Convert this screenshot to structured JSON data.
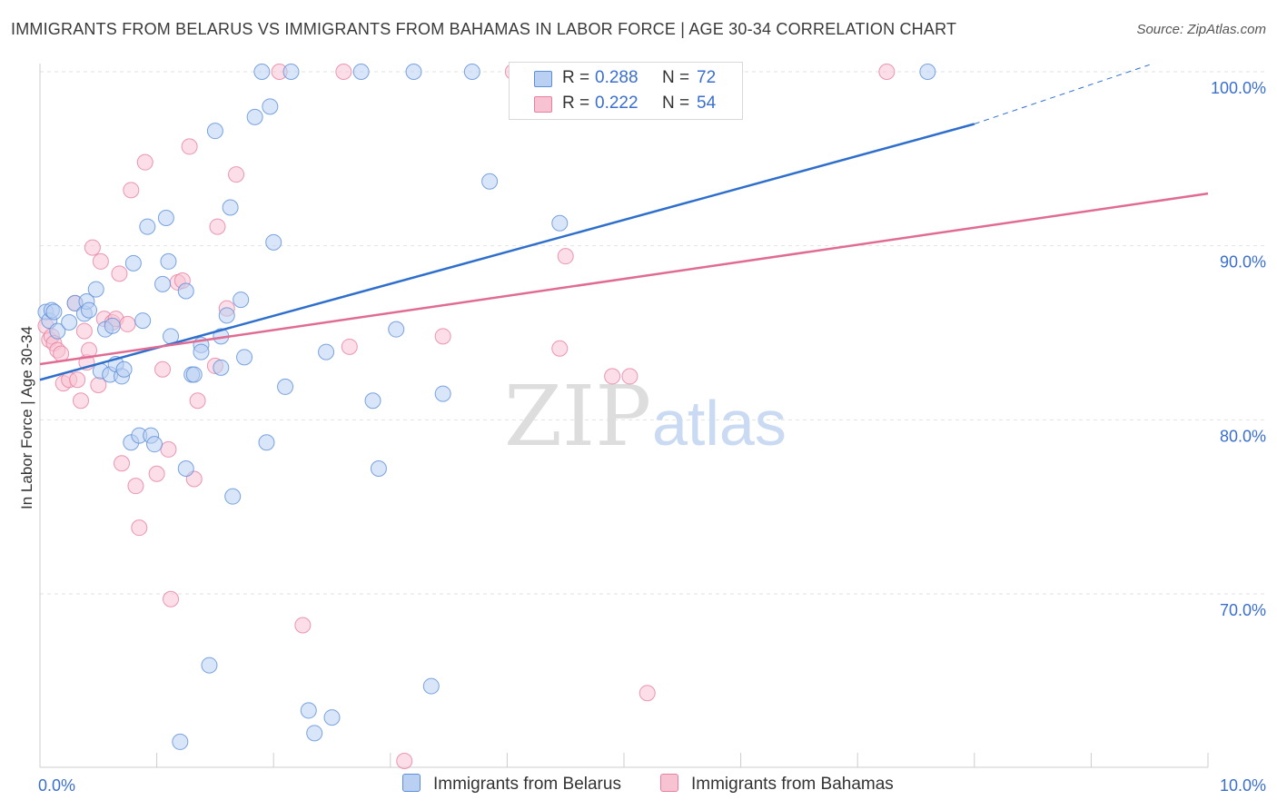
{
  "header": {
    "title": "IMMIGRANTS FROM BELARUS VS IMMIGRANTS FROM BAHAMAS IN LABOR FORCE | AGE 30-34 CORRELATION CHART",
    "source": "Source: ZipAtlas.com"
  },
  "watermark": {
    "zip": "ZIP",
    "atlas": "atlas"
  },
  "legend": {
    "belarus": {
      "r_label": "R =",
      "r_value": "0.288",
      "n_label": "N =",
      "n_value": "72"
    },
    "bahamas": {
      "r_label": "R =",
      "r_value": "0.222",
      "n_label": "N =",
      "n_value": "54"
    }
  },
  "chart_data": {
    "type": "scatter",
    "title": "IMMIGRANTS FROM BELARUS VS IMMIGRANTS FROM BAHAMAS IN LABOR FORCE | AGE 30-34 CORRELATION CHART",
    "xlabel": "",
    "ylabel": "In Labor Force | Age 30-34",
    "xlim": [
      0,
      10
    ],
    "ylim": [
      60,
      102
    ],
    "x_tick_labels": [
      "0.0%",
      "10.0%"
    ],
    "x_tick_values": [
      0,
      10
    ],
    "y_tick_labels": [
      "70.0%",
      "80.0%",
      "90.0%",
      "100.0%"
    ],
    "y_tick_values": [
      70,
      80,
      90,
      100
    ],
    "grid": true,
    "colors": {
      "belarus": "#5b8fd8",
      "belarus_fill": "#b9d0f3",
      "bahamas": "#e77fa0",
      "bahamas_fill": "#f7c3d3"
    },
    "series": [
      {
        "name": "Immigrants from Belarus",
        "r": 0.288,
        "n": 72,
        "trend": {
          "x0": 0.0,
          "y0": 82.3,
          "x1": 8.0,
          "y1": 97.0,
          "dash_to_x": 9.5,
          "dash_to_y": 100.4
        },
        "points": [
          [
            0.05,
            86.2
          ],
          [
            0.08,
            85.7
          ],
          [
            0.1,
            86.3
          ],
          [
            0.12,
            86.2
          ],
          [
            0.15,
            85.1
          ],
          [
            0.25,
            85.6
          ],
          [
            0.3,
            86.7
          ],
          [
            0.38,
            86.1
          ],
          [
            0.4,
            86.8
          ],
          [
            0.42,
            86.3
          ],
          [
            0.48,
            87.5
          ],
          [
            0.52,
            82.8
          ],
          [
            0.56,
            85.2
          ],
          [
            0.6,
            82.6
          ],
          [
            0.62,
            85.4
          ],
          [
            0.65,
            83.2
          ],
          [
            0.7,
            82.5
          ],
          [
            0.72,
            82.9
          ],
          [
            0.78,
            78.7
          ],
          [
            0.8,
            89.0
          ],
          [
            0.85,
            79.1
          ],
          [
            0.88,
            85.7
          ],
          [
            0.92,
            91.1
          ],
          [
            0.95,
            79.1
          ],
          [
            0.98,
            78.6
          ],
          [
            1.05,
            87.8
          ],
          [
            1.08,
            91.6
          ],
          [
            1.1,
            89.1
          ],
          [
            1.12,
            84.8
          ],
          [
            1.2,
            61.5
          ],
          [
            1.25,
            87.4
          ],
          [
            1.25,
            77.2
          ],
          [
            1.3,
            82.6
          ],
          [
            1.32,
            82.6
          ],
          [
            1.38,
            84.3
          ],
          [
            1.38,
            83.9
          ],
          [
            1.45,
            65.9
          ],
          [
            1.5,
            96.6
          ],
          [
            1.55,
            84.8
          ],
          [
            1.55,
            83.0
          ],
          [
            1.6,
            86.0
          ],
          [
            1.63,
            92.2
          ],
          [
            1.65,
            75.6
          ],
          [
            1.72,
            86.9
          ],
          [
            1.75,
            83.6
          ],
          [
            1.84,
            97.4
          ],
          [
            1.9,
            100.0
          ],
          [
            1.94,
            78.7
          ],
          [
            1.97,
            98.0
          ],
          [
            2.0,
            90.2
          ],
          [
            2.1,
            81.9
          ],
          [
            2.15,
            100.0
          ],
          [
            2.3,
            63.3
          ],
          [
            2.35,
            62.0
          ],
          [
            2.45,
            83.9
          ],
          [
            2.5,
            62.9
          ],
          [
            2.75,
            100.0
          ],
          [
            2.85,
            81.1
          ],
          [
            2.9,
            77.2
          ],
          [
            3.05,
            85.2
          ],
          [
            3.2,
            100.0
          ],
          [
            3.35,
            64.7
          ],
          [
            3.45,
            81.5
          ],
          [
            3.7,
            100.0
          ],
          [
            3.85,
            93.7
          ],
          [
            4.1,
            100.0
          ],
          [
            4.15,
            100.0
          ],
          [
            4.45,
            91.3
          ],
          [
            5.1,
            100.0
          ],
          [
            5.25,
            100.0
          ],
          [
            5.9,
            100.0
          ],
          [
            7.6,
            100.0
          ]
        ]
      },
      {
        "name": "Immigrants from Bahamas",
        "r": 0.222,
        "n": 54,
        "trend": {
          "x0": 0.0,
          "y0": 83.2,
          "x1": 10.0,
          "y1": 93.0
        },
        "points": [
          [
            0.05,
            85.4
          ],
          [
            0.08,
            84.6
          ],
          [
            0.1,
            84.8
          ],
          [
            0.12,
            84.4
          ],
          [
            0.15,
            84.0
          ],
          [
            0.18,
            83.8
          ],
          [
            0.2,
            82.1
          ],
          [
            0.25,
            82.3
          ],
          [
            0.3,
            86.7
          ],
          [
            0.32,
            82.3
          ],
          [
            0.35,
            81.1
          ],
          [
            0.38,
            85.1
          ],
          [
            0.4,
            83.3
          ],
          [
            0.42,
            84.0
          ],
          [
            0.45,
            89.9
          ],
          [
            0.5,
            82.0
          ],
          [
            0.52,
            89.1
          ],
          [
            0.55,
            85.8
          ],
          [
            0.62,
            85.6
          ],
          [
            0.65,
            85.8
          ],
          [
            0.68,
            88.4
          ],
          [
            0.7,
            77.5
          ],
          [
            0.75,
            85.5
          ],
          [
            0.78,
            93.2
          ],
          [
            0.82,
            76.2
          ],
          [
            0.85,
            73.8
          ],
          [
            0.9,
            94.8
          ],
          [
            1.0,
            76.9
          ],
          [
            1.05,
            82.9
          ],
          [
            1.1,
            78.3
          ],
          [
            1.12,
            69.7
          ],
          [
            1.18,
            87.9
          ],
          [
            1.22,
            88.0
          ],
          [
            1.28,
            95.7
          ],
          [
            1.32,
            76.6
          ],
          [
            1.35,
            81.1
          ],
          [
            1.5,
            83.1
          ],
          [
            1.52,
            91.1
          ],
          [
            1.6,
            86.4
          ],
          [
            1.68,
            94.1
          ],
          [
            2.05,
            100.0
          ],
          [
            2.25,
            68.2
          ],
          [
            2.6,
            100.0
          ],
          [
            2.65,
            84.2
          ],
          [
            3.12,
            60.4
          ],
          [
            3.45,
            84.8
          ],
          [
            4.05,
            100.0
          ],
          [
            4.45,
            84.1
          ],
          [
            4.5,
            89.4
          ],
          [
            4.9,
            82.5
          ],
          [
            5.05,
            82.5
          ],
          [
            5.2,
            64.3
          ],
          [
            5.95,
            100.0
          ],
          [
            7.25,
            100.0
          ]
        ]
      }
    ]
  },
  "axes": {
    "x_left": "0.0%",
    "x_right": "10.0%",
    "y_ticks": [
      "70.0%",
      "80.0%",
      "90.0%",
      "100.0%"
    ],
    "ylabel": "In Labor Force | Age 30-34"
  },
  "bottom_legend": {
    "belarus": "Immigrants from Belarus",
    "bahamas": "Immigrants from Bahamas"
  }
}
